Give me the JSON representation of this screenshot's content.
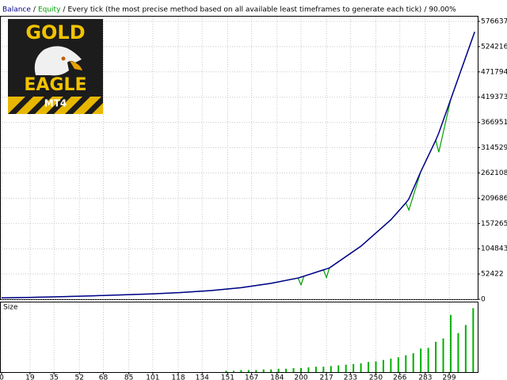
{
  "chart_data": [
    {
      "type": "line",
      "title": "Every tick (the most precise method based on all available least timeframes to generate each tick)",
      "annotation": "90.00%",
      "separator": "/",
      "xlim": [
        0,
        318
      ],
      "ylim": [
        0,
        591400
      ],
      "yticks": [
        0,
        52422,
        104843,
        157265,
        209686,
        262108,
        314529,
        366951,
        419373,
        471794,
        524216,
        576637
      ],
      "grid": true,
      "x": [
        0,
        20,
        40,
        60,
        80,
        100,
        120,
        140,
        160,
        180,
        198,
        200,
        202,
        215,
        217,
        219,
        240,
        260,
        270,
        272,
        280,
        290,
        292,
        300,
        316
      ],
      "series": [
        {
          "name": "Balance",
          "color": "#00008b",
          "values": [
            3000,
            4000,
            5500,
            7000,
            9000,
            11000,
            14000,
            18000,
            24000,
            33000,
            44000,
            46000,
            48000,
            61000,
            63000,
            65000,
            110000,
            165000,
            200000,
            208000,
            265000,
            330000,
            345000,
            415000,
            555000
          ]
        },
        {
          "name": "Equity",
          "color": "#00a000",
          "values": [
            3000,
            4000,
            5500,
            7000,
            9000,
            11000,
            14000,
            18000,
            24000,
            33000,
            44000,
            30000,
            48000,
            61000,
            45000,
            65000,
            110000,
            165000,
            200000,
            185000,
            265000,
            330000,
            305000,
            415000,
            555000
          ]
        }
      ]
    },
    {
      "type": "bar",
      "title": "Size",
      "color": "#00b000",
      "xlim": [
        0,
        318
      ],
      "ylim": [
        0,
        100
      ],
      "xticks": [
        0,
        19,
        35,
        52,
        68,
        85,
        101,
        118,
        134,
        151,
        167,
        184,
        200,
        217,
        233,
        250,
        266,
        283,
        299
      ],
      "grid": true,
      "x": [
        150,
        155,
        160,
        165,
        170,
        175,
        180,
        185,
        190,
        195,
        200,
        205,
        210,
        215,
        220,
        225,
        230,
        235,
        240,
        245,
        250,
        255,
        260,
        265,
        270,
        275,
        280,
        285,
        290,
        295,
        300,
        305,
        310,
        315
      ],
      "values": [
        2,
        2,
        3,
        3,
        3,
        4,
        4,
        5,
        5,
        6,
        6,
        7,
        8,
        8,
        9,
        10,
        11,
        12,
        13,
        15,
        16,
        18,
        20,
        22,
        25,
        28,
        35,
        36,
        45,
        50,
        85,
        58,
        70,
        95
      ]
    }
  ],
  "logo": {
    "line1": "GOLD",
    "line2": "EAGLE",
    "line3": "MT4"
  }
}
